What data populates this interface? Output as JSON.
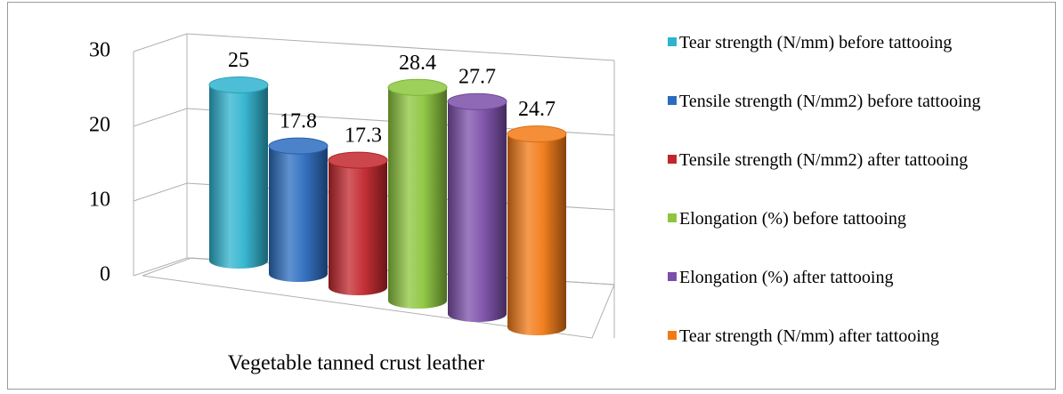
{
  "chart_data": {
    "type": "bar3d",
    "categories": [
      "Vegetable tanned crust leather"
    ],
    "ylim": [
      0,
      30
    ],
    "yticks": [
      0,
      10,
      20,
      30
    ],
    "grid": true,
    "legend": "right",
    "series": [
      {
        "name": "Tear strength (N/mm) before tattooing",
        "color": "#2fb3cf",
        "values": [
          25
        ]
      },
      {
        "name": "Tensile strength (N/mm2) before tattooing",
        "color": "#2b6cbf",
        "values": [
          17.8
        ]
      },
      {
        "name": "Tensile strength (N/mm2) after tattooing",
        "color": "#c2262c",
        "values": [
          17.3
        ]
      },
      {
        "name": "Elongation (%) before tattooing",
        "color": "#8cc63e",
        "values": [
          28.4
        ]
      },
      {
        "name": "Elongation (%) after tattooing",
        "color": "#7b4fa9",
        "values": [
          27.7
        ]
      },
      {
        "name": "Tear strength (N/mm) after tattooing",
        "color": "#f27a15",
        "values": [
          24.7
        ]
      }
    ]
  }
}
